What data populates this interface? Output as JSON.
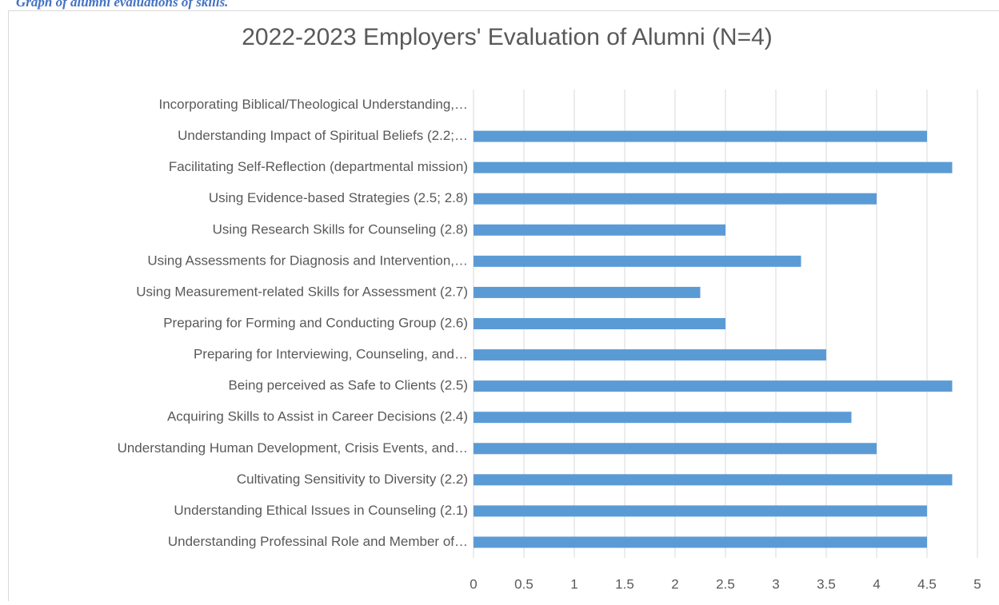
{
  "caption": "Graph of alumni evaluations of skills.",
  "chart_data": {
    "type": "barh",
    "title": "2022-2023 Employers' Evaluation of Alumni (N=4)",
    "categories": [
      "Incorporating Biblical/Theological Understanding,…",
      "Understanding Impact of Spiritual Beliefs (2.2;…",
      "Facilitating Self-Reflection (departmental mission)",
      "Using Evidence-based Strategies (2.5; 2.8)",
      "Using Research Skills for Counseling (2.8)",
      "Using Assessments for Diagnosis and Intervention,…",
      "Using Measurement-related Skills for Assessment (2.7)",
      "Preparing for Forming and Conducting Group (2.6)",
      "Preparing for Interviewing, Counseling, and…",
      "Being perceived as Safe to Clients (2.5)",
      "Acquiring Skills to Assist in Career Decisions (2.4)",
      "Understanding Human Development, Crisis Events, and…",
      "Cultivating Sensitivity to Diversity (2.2)",
      "Understanding Ethical Issues in Counseling (2.1)",
      "Understanding Professinal Role and Member of…"
    ],
    "values": [
      null,
      4.5,
      4.75,
      4,
      2.5,
      3.25,
      2.25,
      2.5,
      3.5,
      4.75,
      3.75,
      4,
      4.75,
      4.5,
      4.5
    ],
    "color": "#5b9bd5",
    "xlim": [
      0,
      5
    ],
    "xticks": [
      0,
      0.5,
      1,
      1.5,
      2,
      2.5,
      3,
      3.5,
      4,
      4.5,
      5
    ],
    "grid": true
  }
}
